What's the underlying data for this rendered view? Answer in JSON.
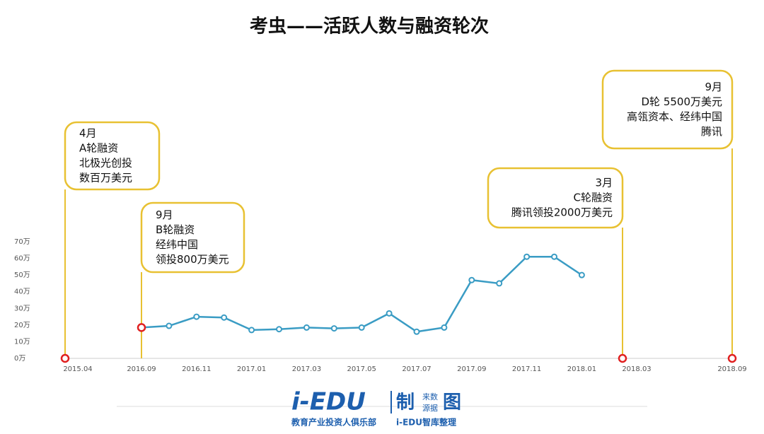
{
  "chart_data": {
    "type": "line",
    "title": "考虫——活跃人数与融资轮次",
    "categories": [
      "2015.04",
      "2016.09",
      null,
      "2016.11",
      null,
      "2017.01",
      null,
      "2017.03",
      null,
      "2017.05",
      null,
      "2017.07",
      null,
      "2017.09",
      null,
      "2017.11",
      null,
      "2018.01",
      null,
      "2018.03",
      "2018.09"
    ],
    "series": [
      {
        "color": "#3a9cc4",
        "values": [
          null,
          18.5,
          19.5,
          25,
          24.5,
          17,
          17.5,
          18.5,
          18,
          18.5,
          27,
          16,
          18.5,
          47,
          45,
          61,
          61,
          50,
          null,
          null,
          null
        ]
      }
    ],
    "ylim": [
      0,
      70
    ],
    "yticks": [
      {
        "value": 0,
        "label": "0万"
      },
      {
        "value": 10,
        "label": "10万"
      },
      {
        "value": 20,
        "label": "20万"
      },
      {
        "value": 30,
        "label": "30万"
      },
      {
        "value": 40,
        "label": "40万"
      },
      {
        "value": 50,
        "label": "50万"
      },
      {
        "value": 60,
        "label": "60万"
      },
      {
        "value": 70,
        "label": "70万"
      }
    ],
    "grid": false,
    "annotations": [
      {
        "x": "2015.04",
        "lines": [
          "4月",
          "A轮融资",
          "北极光创投",
          "数百万美元"
        ]
      },
      {
        "x": "2016.09",
        "lines": [
          "9月",
          "B轮融资",
          "经纬中国",
          "领投800万美元"
        ]
      },
      {
        "x": "2018.03",
        "lines": [
          "3月",
          "C轮融资",
          "腾讯领投2000万美元"
        ]
      },
      {
        "x": "2018.09",
        "lines": [
          "9月",
          "D轮  5500万美元",
          "高瓴资本、经纬中国",
          "腾讯"
        ]
      }
    ]
  },
  "footer": {
    "logo": "i-EDU",
    "mark": "制",
    "source_top": "来数",
    "source_bottom": "源据",
    "mark2": "图",
    "tagline": "教育产业投资人俱乐部",
    "credit": "i-EDU智库整理"
  }
}
